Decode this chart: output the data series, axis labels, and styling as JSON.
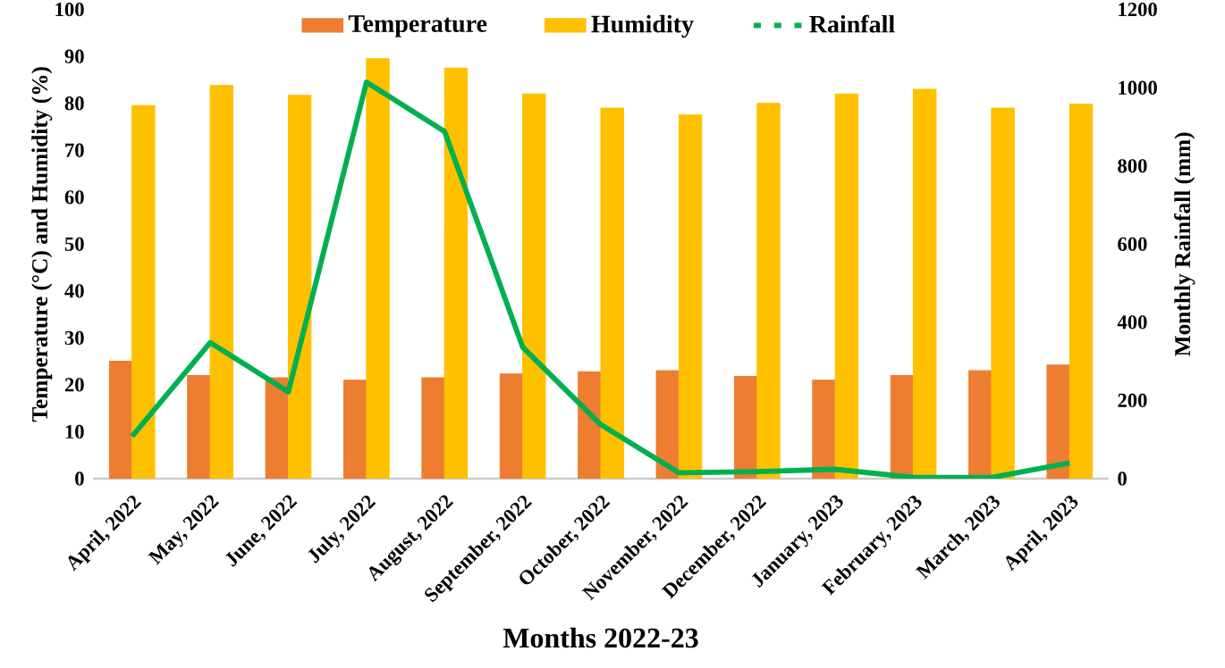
{
  "chart_data": {
    "type": "bar",
    "categories": [
      "April, 2022",
      "May, 2022",
      "June, 2022",
      "July, 2022",
      "August, 2022",
      "September, 2022",
      "October, 2022",
      "November, 2022",
      "December, 2022",
      "January, 2023",
      "February, 2023",
      "March, 2023",
      "April, 2023"
    ],
    "series": [
      {
        "name": "Temperature",
        "color": "#ed7d31",
        "values": [
          25,
          22,
          21.5,
          21,
          21.5,
          22.3,
          22.8,
          23,
          21.8,
          21,
          22,
          23,
          24.2
        ]
      },
      {
        "name": "Humidity",
        "color": "#ffc000",
        "values": [
          79.5,
          83.8,
          81.7,
          89.5,
          87.5,
          82,
          79,
          77.5,
          80,
          82,
          83,
          79,
          79.8
        ]
      },
      {
        "name": "Rainfall",
        "type": "line",
        "axis": "y2",
        "color": "#00b050",
        "values": [
          108,
          348,
          222,
          1014,
          888,
          336,
          138,
          15,
          18,
          24,
          3,
          3,
          40
        ]
      }
    ],
    "xlabel": "Months 2022-23",
    "ylabel": "Temperature (°C) and Humidity (%)",
    "y2label": "Monthly Rainfall (mm)",
    "ylim": [
      0,
      100
    ],
    "yticks": [
      0,
      10,
      20,
      30,
      40,
      50,
      60,
      70,
      80,
      90,
      100
    ],
    "y2lim": [
      0,
      1200
    ],
    "y2ticks": [
      0,
      200,
      400,
      600,
      800,
      1000,
      1200
    ],
    "legend": "top",
    "grid": false,
    "marker": "none",
    "line_style": "solid"
  }
}
